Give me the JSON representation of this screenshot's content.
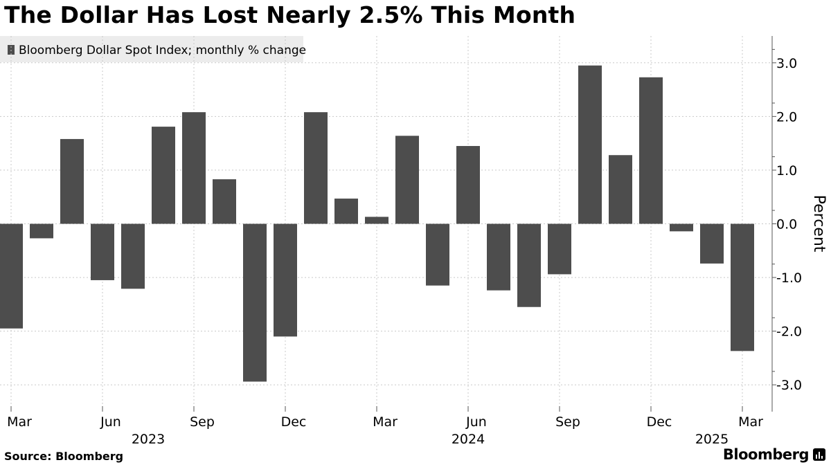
{
  "title": "The Dollar Has Lost Nearly 2.5% This Month",
  "source": "Source: Bloomberg",
  "brand": "Bloomberg",
  "colors": {
    "bar": "#4d4d4d",
    "legend_bg": "#ececec"
  },
  "chart_data": {
    "type": "bar",
    "legend": "Bloomberg Dollar Spot Index; monthly % change",
    "ylabel": "Percent",
    "ylim": [
      -3.5,
      3.5
    ],
    "yticks": [
      3.0,
      2.0,
      1.0,
      0.0,
      -1.0,
      -2.0,
      -3.0
    ],
    "ytick_labels": [
      "3.0",
      "2.0",
      "1.0",
      "0.0",
      "-1.0",
      "-2.0",
      "-3.0"
    ],
    "categories": [
      "2023-03",
      "2023-04",
      "2023-05",
      "2023-06",
      "2023-07",
      "2023-08",
      "2023-09",
      "2023-10",
      "2023-11",
      "2023-12",
      "2024-01",
      "2024-02",
      "2024-03",
      "2024-04",
      "2024-05",
      "2024-06",
      "2024-07",
      "2024-08",
      "2024-09",
      "2024-10",
      "2024-11",
      "2024-12",
      "2025-01",
      "2025-02",
      "2025-03"
    ],
    "values": [
      -1.95,
      -0.27,
      1.58,
      -1.05,
      -1.21,
      1.81,
      2.08,
      0.83,
      -2.94,
      -2.1,
      2.08,
      0.47,
      0.13,
      1.64,
      -1.15,
      1.45,
      -1.24,
      -1.55,
      -0.94,
      2.95,
      1.28,
      2.73,
      -0.14,
      -0.74,
      -2.37
    ],
    "xtick_labels": [
      {
        "index": 0,
        "label": "Mar"
      },
      {
        "index": 3,
        "label": "Jun"
      },
      {
        "index": 6,
        "label": "Sep"
      },
      {
        "index": 9,
        "label": "Dec"
      },
      {
        "index": 12,
        "label": "Mar"
      },
      {
        "index": 15,
        "label": "Jun"
      },
      {
        "index": 18,
        "label": "Sep"
      },
      {
        "index": 21,
        "label": "Dec"
      },
      {
        "index": 24,
        "label": "Mar"
      }
    ],
    "year_labels": [
      {
        "index": 4.5,
        "label": "2023"
      },
      {
        "index": 15,
        "label": "2024"
      },
      {
        "index": 23,
        "label": "2025"
      }
    ]
  }
}
